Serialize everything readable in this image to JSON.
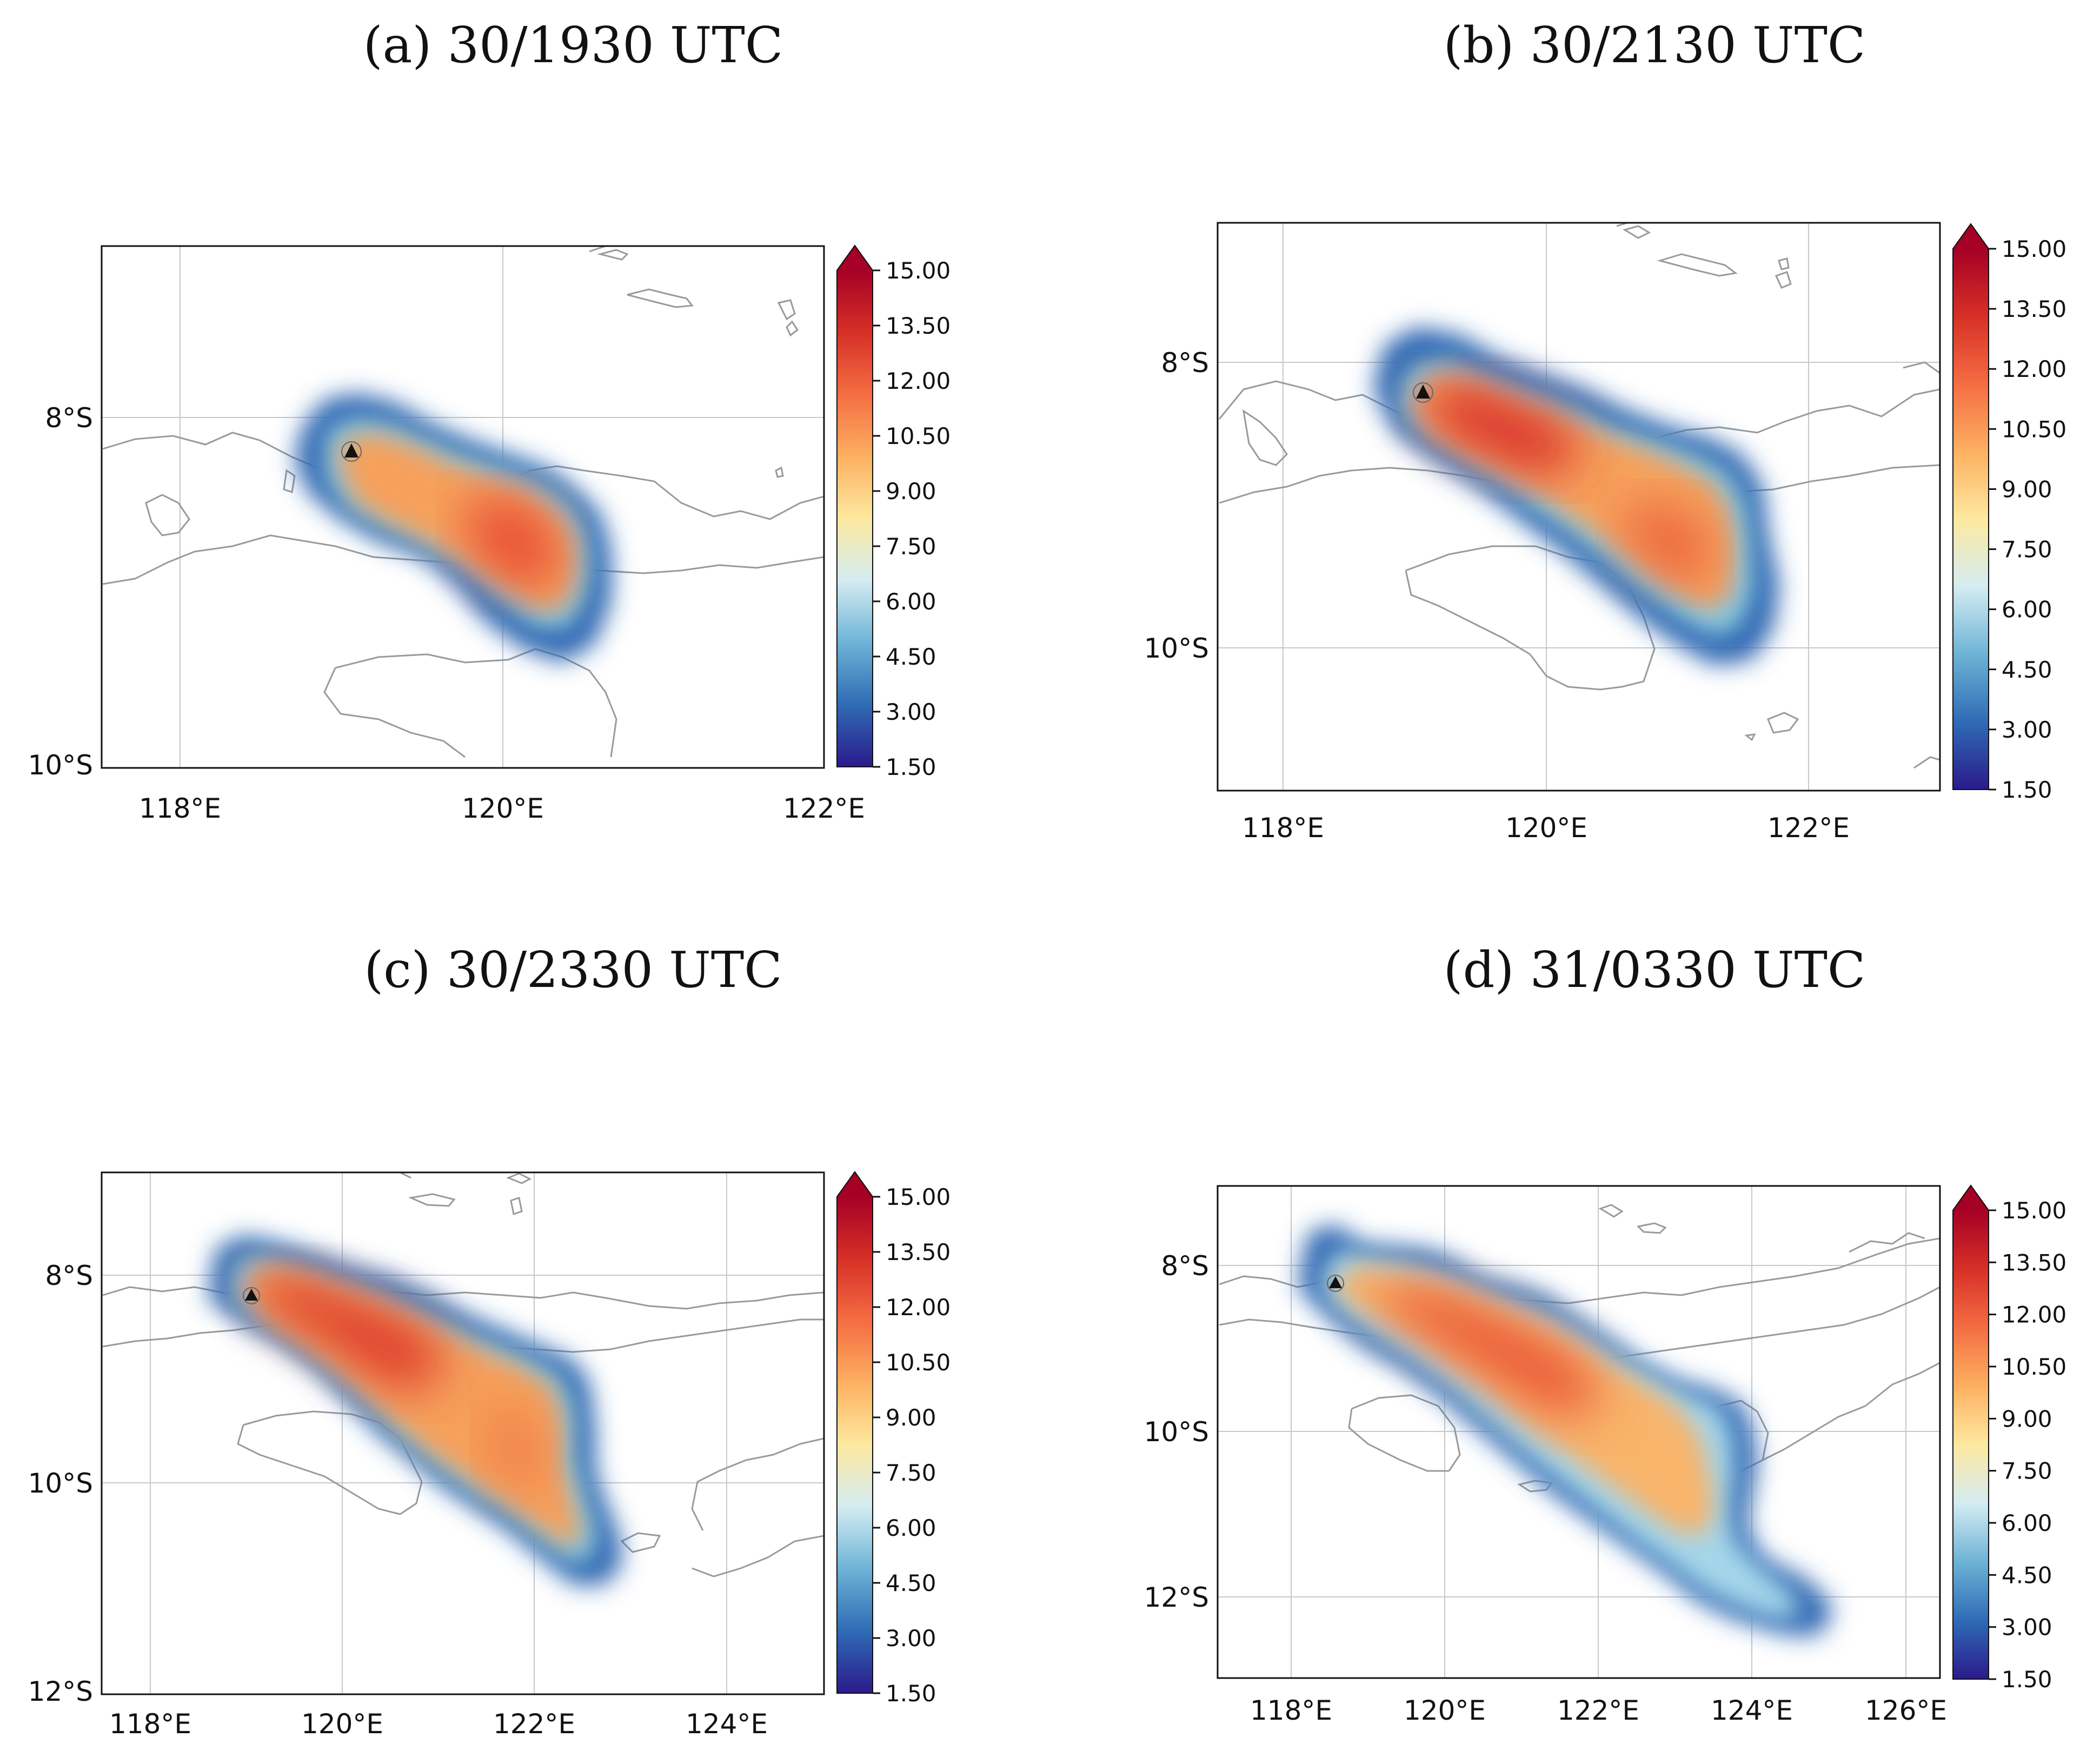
{
  "colorbar": {
    "ticks": [
      "15.00",
      "13.50",
      "12.00",
      "10.50",
      "9.00",
      "7.50",
      "6.00",
      "4.50",
      "3.00",
      "1.50"
    ],
    "stops": [
      "#2b1a8c",
      "#2f6bb5",
      "#6db3d6",
      "#d4ecf2",
      "#fde9a0",
      "#fdb061",
      "#f46d43",
      "#d73027",
      "#a50026"
    ]
  },
  "volcano_symbol": "triangle-icon",
  "panels": [
    {
      "title": "(a) 30/1930 UTC",
      "lon_labels": [
        "118°E",
        "120°E",
        "122°E"
      ],
      "lat_labels": [
        "8°S",
        "10°S"
      ]
    },
    {
      "title": "(b) 30/2130 UTC",
      "lon_labels": [
        "118°E",
        "120°E",
        "122°E"
      ],
      "lat_labels": [
        "8°S",
        "10°S"
      ]
    },
    {
      "title": "(c) 30/2330 UTC",
      "lon_labels": [
        "118°E",
        "120°E",
        "122°E",
        "124°E"
      ],
      "lat_labels": [
        "8°S",
        "10°S",
        "12°S"
      ]
    },
    {
      "title": "(d) 31/0330 UTC",
      "lon_labels": [
        "118°E",
        "120°E",
        "122°E",
        "124°E",
        "126°E"
      ],
      "lat_labels": [
        "8°S",
        "10°S",
        "12°S"
      ]
    }
  ]
}
